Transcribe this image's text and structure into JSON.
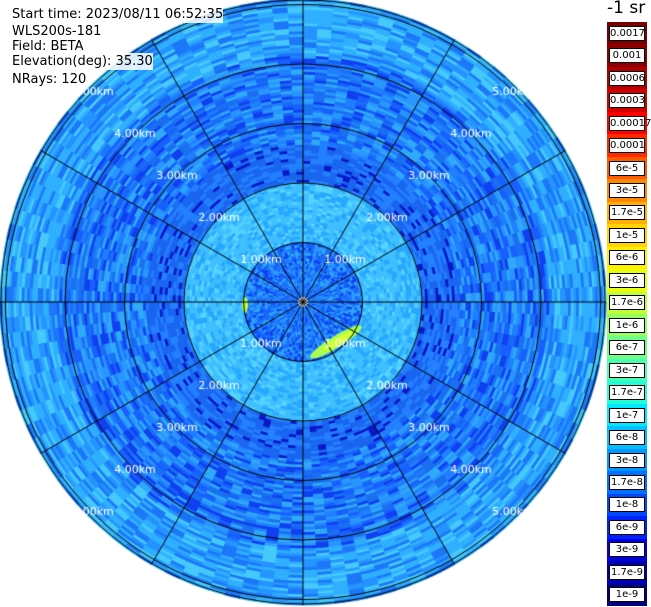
{
  "info": {
    "start_time": "Start time: 2023/08/11 06:52:35",
    "instrument": "WLS200s-181",
    "field": "Field: BETA",
    "elevation": "Elevation(deg): 35.30",
    "nrays": "NRays: 120"
  },
  "range_labels": [
    "1.00km",
    "2.00km",
    "3.00km",
    "4.00km",
    "5.00km"
  ],
  "colorbar": {
    "unit": "-1 sr",
    "ticks": [
      "0.0017",
      "0.001",
      "0.0006",
      "0.0003",
      "0.00017",
      "0.0001",
      "6e-5",
      "3e-5",
      "1.7e-5",
      "1e-5",
      "6e-6",
      "3e-6",
      "1.7e-6",
      "1e-6",
      "6e-7",
      "3e-7",
      "1.7e-7",
      "1e-7",
      "6e-8",
      "3e-8",
      "1.7e-8",
      "1e-8",
      "6e-9",
      "3e-9",
      "1.7e-9",
      "1e-9"
    ],
    "colors": [
      "#7a0000",
      "#8e0000",
      "#b00000",
      "#d40000",
      "#ff0000",
      "#ff2a00",
      "#ff5a00",
      "#ff8800",
      "#ffb000",
      "#ffd400",
      "#fff000",
      "#e8ff10",
      "#c0ff38",
      "#98ff60",
      "#70ff88",
      "#48ffb0",
      "#20ffd8",
      "#00e8ff",
      "#00c0ff",
      "#0098ff",
      "#0070ff",
      "#0048ff",
      "#0020ff",
      "#0000e0",
      "#0000b0",
      "#000080"
    ]
  }
}
